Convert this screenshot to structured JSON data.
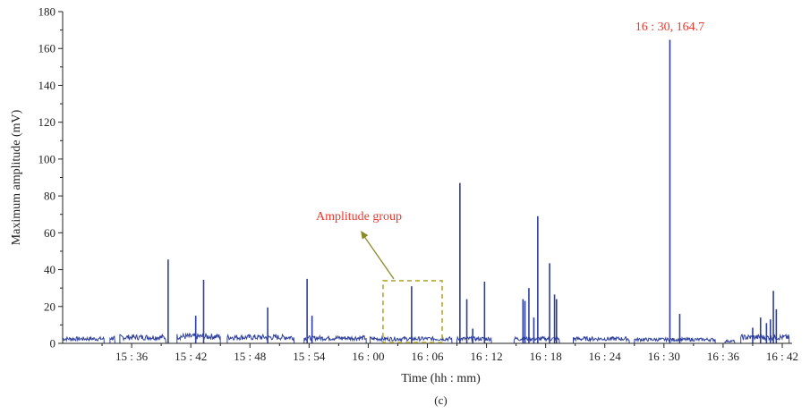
{
  "chart_data": {
    "type": "line",
    "title": "",
    "xlabel": "Time (hh : mm)",
    "ylabel": "Maximum amplitude (mV)",
    "caption": "(c)",
    "ylim": [
      0,
      180
    ],
    "yticks": [
      0,
      20,
      40,
      60,
      80,
      100,
      120,
      140,
      160,
      180
    ],
    "xlim": [
      "15:29",
      "16:43"
    ],
    "xticks": [
      "15 : 36",
      "15 : 42",
      "15 : 48",
      "15 : 54",
      "16 : 00",
      "16 : 06",
      "16 : 12",
      "16 : 18",
      "16 : 24",
      "16 : 30",
      "16 : 36",
      "16 : 42"
    ],
    "grid": false,
    "series_color": "#2e3f9e",
    "peaks": [
      {
        "x": "15:39.7",
        "y": 45.5
      },
      {
        "x": "15:42.5",
        "y": 15
      },
      {
        "x": "15:43.3",
        "y": 34.5
      },
      {
        "x": "15:49.8",
        "y": 19.5
      },
      {
        "x": "15:53.8",
        "y": 35
      },
      {
        "x": "15:54.3",
        "y": 15
      },
      {
        "x": "16:04.4",
        "y": 31
      },
      {
        "x": "16:09.3",
        "y": 87
      },
      {
        "x": "16:10.0",
        "y": 24
      },
      {
        "x": "16:10.6",
        "y": 8
      },
      {
        "x": "16:11.8",
        "y": 33.5
      },
      {
        "x": "16:15.7",
        "y": 24
      },
      {
        "x": "16:15.9",
        "y": 23
      },
      {
        "x": "16:16.3",
        "y": 30
      },
      {
        "x": "16:16.8",
        "y": 14
      },
      {
        "x": "16:17.2",
        "y": 69
      },
      {
        "x": "16:18.4",
        "y": 43.5
      },
      {
        "x": "16:18.9",
        "y": 26.5
      },
      {
        "x": "16:19.1",
        "y": 24
      },
      {
        "x": "16:30.6",
        "y": 164.7
      },
      {
        "x": "16:31.6",
        "y": 16
      },
      {
        "x": "16:39.0",
        "y": 8.5
      },
      {
        "x": "16:39.8",
        "y": 14
      },
      {
        "x": "16:40.4",
        "y": 11
      },
      {
        "x": "16:40.8",
        "y": 13
      },
      {
        "x": "16:41.1",
        "y": 28.5
      },
      {
        "x": "16:41.4",
        "y": 18.5
      }
    ],
    "baseline_segments": [
      {
        "start": "15:29.0",
        "end": "15:33.2",
        "level": 3
      },
      {
        "start": "15:33.8",
        "end": "15:34.3",
        "level": 3.5
      },
      {
        "start": "15:34.8",
        "end": "15:39.5",
        "level": 4
      },
      {
        "start": "15:40.6",
        "end": "15:45.0",
        "level": 4.5
      },
      {
        "start": "15:45.7",
        "end": "15:52.5",
        "level": 4
      },
      {
        "start": "15:53.5",
        "end": "15:59.8",
        "level": 3.5
      },
      {
        "start": "16:00.2",
        "end": "16:08.5",
        "level": 3
      },
      {
        "start": "16:09.0",
        "end": "16:12.5",
        "level": 3
      },
      {
        "start": "16:14.8",
        "end": "16:19.4",
        "level": 3
      },
      {
        "start": "16:20.8",
        "end": "16:26.5",
        "level": 3
      },
      {
        "start": "16:27.0",
        "end": "16:35.2",
        "level": 2.5
      },
      {
        "start": "16:36.2",
        "end": "16:37.2",
        "level": 1.5
      },
      {
        "start": "16:37.8",
        "end": "16:42.7",
        "level": 4
      }
    ],
    "annotations": [
      {
        "text": "16 : 30, 164.7",
        "x": "16:30.6",
        "y": 164.7
      },
      {
        "text": "Amplitude group",
        "box_x": [
          "16:01.5",
          "16:07.5"
        ],
        "box_y": [
          0,
          34
        ]
      }
    ]
  }
}
